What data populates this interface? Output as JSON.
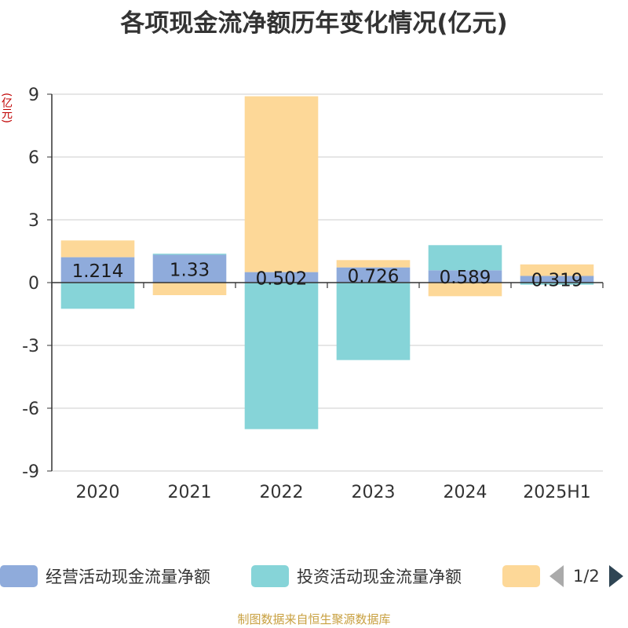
{
  "title": "各项现金流净额历年变化情况(亿元)",
  "unit_label": "(亿元)",
  "chart_data": {
    "type": "bar",
    "stacked": true,
    "categories": [
      "2020",
      "2021",
      "2022",
      "2023",
      "2024",
      "2025H1"
    ],
    "y_ticks": [
      "9",
      "6",
      "3",
      "0",
      "-3",
      "-6",
      "-9"
    ],
    "ylim": [
      -9,
      9
    ],
    "grid": true,
    "series": [
      {
        "name": "经营活动现金流量净额",
        "color": "#8fabdb",
        "values": [
          1.214,
          1.33,
          0.502,
          0.726,
          0.589,
          0.319
        ],
        "labels": [
          "1.214",
          "1.33",
          "0.502",
          "0.726",
          "0.589",
          "0.319"
        ]
      },
      {
        "name": "投资活动现金流量净额",
        "color": "#86d4d8",
        "values": [
          -1.25,
          0.05,
          -7.0,
          -3.7,
          1.2,
          -0.1
        ]
      },
      {
        "name": "",
        "color": "#fdd898",
        "values": [
          0.8,
          -0.6,
          8.4,
          0.35,
          -0.65,
          0.55
        ]
      }
    ]
  },
  "legend": {
    "items": [
      {
        "label": "经营活动现金流量净额",
        "color": "#8fabdb"
      },
      {
        "label": "投资活动现金流量净额",
        "color": "#86d4d8"
      },
      {
        "label": "",
        "color": "#fdd898"
      }
    ],
    "page": "1/2"
  },
  "source": "制图数据来自恒生聚源数据库"
}
